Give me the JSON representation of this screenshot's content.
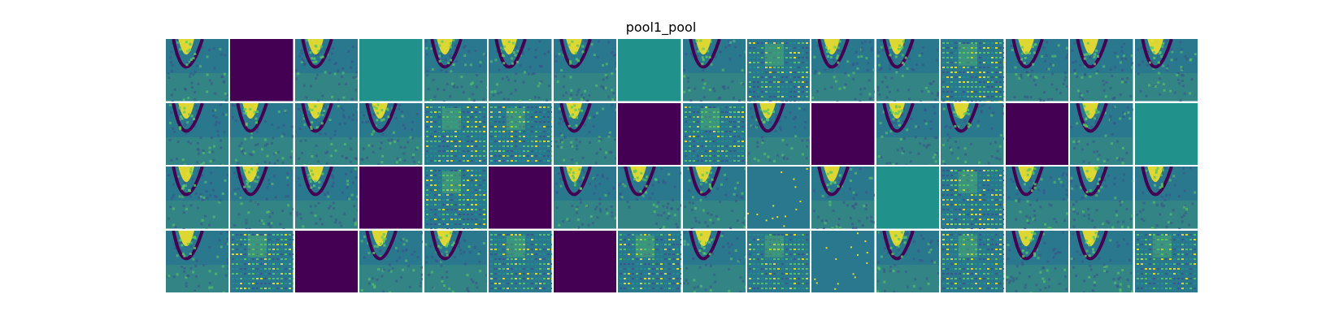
{
  "chart_data": {
    "type": "heatmap",
    "title": "pool1_pool",
    "rows": 4,
    "cols": 16,
    "colormap": "viridis",
    "tiles": [
      "blob",
      "dark",
      "blob",
      "flat",
      "blob",
      "blob",
      "blob",
      "flat",
      "blob",
      "stripe",
      "blob",
      "blob",
      "stripe",
      "blob",
      "blob",
      "blob",
      "blob",
      "blob",
      "blob",
      "blob",
      "stripe",
      "stripe",
      "blob",
      "dark",
      "stripe",
      "blob",
      "dark",
      "blob",
      "blob",
      "dark",
      "blob",
      "flat",
      "blob",
      "blob",
      "blob",
      "dark",
      "stripe",
      "dark",
      "blob",
      "blob",
      "blob",
      "speck",
      "blob",
      "flat",
      "stripe",
      "blob",
      "blob",
      "blob",
      "blob",
      "stripe",
      "dark",
      "blob",
      "blob",
      "stripe",
      "dark",
      "stripe",
      "blob",
      "stripe",
      "speck",
      "blob",
      "stripe",
      "blob",
      "blob",
      "stripe"
    ],
    "colors": {
      "dark": "#440154",
      "flat": "#21918c",
      "yellow": "#fde725",
      "mid": "#2a788e",
      "low": "#3b528b"
    }
  }
}
